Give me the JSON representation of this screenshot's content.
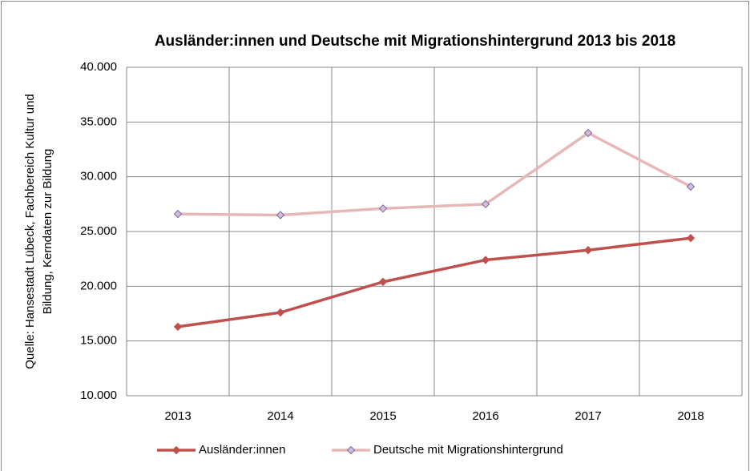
{
  "chart_data": {
    "type": "line",
    "title": "Ausländer:innen  und Deutsche mit Migrationshintergrund 2013 bis 2018",
    "ylabel": [
      "Quelle: Hansestadt Lübeck, Fachbereich Kultur und",
      "Bildung, Kerndaten zur Bildung"
    ],
    "categories": [
      "2013",
      "2014",
      "2015",
      "2016",
      "2017",
      "2018"
    ],
    "series": [
      {
        "name": "Ausländer:innen",
        "color": "#c0504d",
        "marker_fill": "#c0504d",
        "marker_stroke": "#c0504d",
        "values": [
          16300,
          17600,
          20400,
          22400,
          23300,
          24400
        ]
      },
      {
        "name": "Deutsche mit Migrationshintergrund",
        "color": "#e6b9b8",
        "marker_fill": "#ccc0da",
        "marker_stroke": "#8064a2",
        "values": [
          26600,
          26500,
          27100,
          27500,
          34000,
          29100
        ]
      }
    ],
    "ylim": [
      10000,
      40000
    ],
    "yticks": [
      {
        "value": 10000,
        "label": "10.000"
      },
      {
        "value": 15000,
        "label": "15.000"
      },
      {
        "value": 20000,
        "label": "20.000"
      },
      {
        "value": 25000,
        "label": "25.000"
      },
      {
        "value": 30000,
        "label": "30.000"
      },
      {
        "value": 35000,
        "label": "35.000"
      },
      {
        "value": 40000,
        "label": "40.000"
      }
    ],
    "grid": true,
    "legend": "bottom"
  }
}
